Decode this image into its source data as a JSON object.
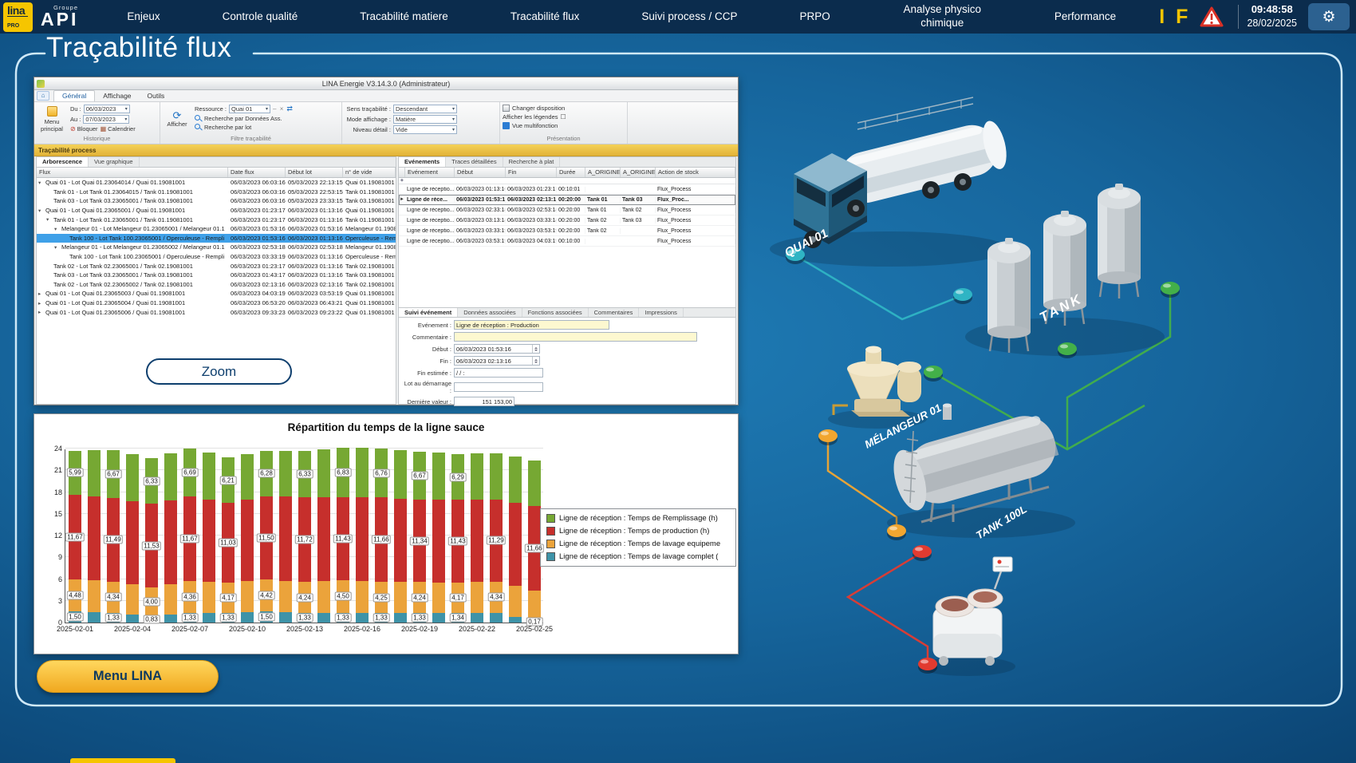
{
  "topbar": {
    "logo_text": "lina",
    "logo_sub": "PRO",
    "brand_top": "Groupe",
    "brand": "API",
    "menu": [
      "Enjeux",
      "Controle qualité",
      "Tracabilité matiere",
      "Tracabilité flux",
      "Suivi process / CCP",
      "PRPO",
      "Analyse physico chimique",
      "Performance"
    ],
    "indicator_i": "I",
    "indicator_f": "F",
    "time": "09:48:58",
    "date": "28/02/2025"
  },
  "page_title": "Traçabilité flux",
  "window": {
    "title": "LINA Energie  V3.14.3.0  (Administrateur)",
    "tabs": [
      "Général",
      "Affichage",
      "Outils"
    ],
    "toolbar": {
      "menu_principal": "Menu principal",
      "du_label": "Du :",
      "du_value": "06/03/2023",
      "au_label": "Au :",
      "au_value": "07/03/2023",
      "bloquer": "Bloquer",
      "calendrier": "Calendrier",
      "group_historique": "Historique",
      "afficher": "Afficher",
      "ressource_label": "Ressource :",
      "ressource_value": "Quai 01",
      "recherche_donnees": "Recherche par Données Ass.",
      "recherche_lot": "Recherche par lot",
      "group_filtre": "Filtre traçabilité",
      "sens_label": "Sens traçabilité :",
      "sens_value": "Descendant",
      "mode_label": "Mode affichage :",
      "mode_value": "Matière",
      "niveau_label": "Niveau détail :",
      "niveau_value": "Vide",
      "changer_disposition": "Changer disposition",
      "afficher_legendes": "Afficher les légendes",
      "vue_multifonction": "Vue multifonction",
      "group_presentation": "Présentation"
    },
    "process_band": "Traçabilité process",
    "left_tabs": [
      "Arborescence",
      "Vue graphique"
    ],
    "tree": {
      "columns": [
        "Flux",
        "Date flux",
        "Début lot",
        "n° de vide"
      ],
      "rows": [
        {
          "level": 0,
          "arrow": "▾",
          "selected": false,
          "flux": "Quai 01 - Lot Quai 01.23064014 / Quai 01.19081001",
          "date": "06/03/2023 06:03:16",
          "debut": "05/03/2023 22:13:15",
          "vide": "Quai 01.19081001"
        },
        {
          "level": 1,
          "arrow": "",
          "selected": false,
          "flux": "Tank 01 - Lot Tank 01.23064015 / Tank 01.19081001",
          "date": "06/03/2023 06:03:16",
          "debut": "05/03/2023 22:53:15",
          "vide": "Tank 01.19081001"
        },
        {
          "level": 1,
          "arrow": "",
          "selected": false,
          "flux": "Tank 03 - Lot Tank 03.23065001 / Tank 03.19081001",
          "date": "06/03/2023 06:03:16",
          "debut": "05/03/2023 23:33:15",
          "vide": "Tank 03.19081001"
        },
        {
          "level": 0,
          "arrow": "▾",
          "selected": false,
          "flux": "Quai 01 - Lot Quai 01.23065001 / Quai 01.19081001",
          "date": "06/03/2023 01:23:17",
          "debut": "06/03/2023 01:13:16",
          "vide": "Quai 01.19081001"
        },
        {
          "level": 1,
          "arrow": "▾",
          "selected": false,
          "flux": "Tank 01 - Lot Tank 01.23065001 / Tank 01.19081001",
          "date": "06/03/2023 01:23:17",
          "debut": "06/03/2023 01:13:16",
          "vide": "Tank 01.19081001"
        },
        {
          "level": 2,
          "arrow": "▾",
          "selected": false,
          "flux": "Melangeur 01 - Lot Melangeur 01.23065001 / Melangeur 01.1",
          "date": "06/03/2023 01:53:16",
          "debut": "06/03/2023 01:53:16",
          "vide": "Melangeur 01.19081001"
        },
        {
          "level": 3,
          "arrow": "",
          "selected": true,
          "flux": "Tank 100 - Lot Tank 100.23065001 / Operculeuse - Rempli",
          "date": "06/03/2023 01:53:16",
          "debut": "06/03/2023 01:13:16",
          "vide": "Operculeuse - Remplis"
        },
        {
          "level": 2,
          "arrow": "▾",
          "selected": false,
          "flux": "Melangeur 01 - Lot Melangeur 01.23065002 / Melangeur 01.1",
          "date": "06/03/2023 02:53:18",
          "debut": "06/03/2023 02:53:18",
          "vide": "Melangeur 01.1908100"
        },
        {
          "level": 3,
          "arrow": "",
          "selected": false,
          "flux": "Tank 100 - Lot Tank 100.23065001 / Operculeuse - Rempli",
          "date": "06/03/2023 03:33:19",
          "debut": "06/03/2023 01:13:16",
          "vide": "Operculeuse - Remplis"
        },
        {
          "level": 1,
          "arrow": "",
          "selected": false,
          "flux": "Tank 02 - Lot Tank 02.23065001 / Tank 02.19081001",
          "date": "06/03/2023 01:23:17",
          "debut": "06/03/2023 01:13:16",
          "vide": "Tank 02.19081001"
        },
        {
          "level": 1,
          "arrow": "",
          "selected": false,
          "flux": "Tank 03 - Lot Tank 03.23065001 / Tank 03.19081001",
          "date": "06/03/2023 01:43:17",
          "debut": "06/03/2023 01:13:16",
          "vide": "Tank 03.19081001"
        },
        {
          "level": 1,
          "arrow": "",
          "selected": false,
          "flux": "Tank 02 - Lot Tank 02.23065002 / Tank 02.19081001",
          "date": "06/03/2023 02:13:16",
          "debut": "06/03/2023 02:13:16",
          "vide": "Tank 02.19081001"
        },
        {
          "level": 0,
          "arrow": "▸",
          "selected": false,
          "flux": "Quai 01 - Lot Quai 01.23065003 / Quai 01.19081001",
          "date": "06/03/2023 04:03:19",
          "debut": "06/03/2023 03:53:19",
          "vide": "Quai 01.19081001"
        },
        {
          "level": 0,
          "arrow": "▸",
          "selected": false,
          "flux": "Quai 01 - Lot Quai 01.23065004 / Quai 01.19081001",
          "date": "06/03/2023 06:53:20",
          "debut": "06/03/2023 06:43:21",
          "vide": "Quai 01.19081001"
        },
        {
          "level": 0,
          "arrow": "▸",
          "selected": false,
          "flux": "Quai 01 - Lot Quai 01.23065006 / Quai 01.19081001",
          "date": "06/03/2023 09:33:23",
          "debut": "06/03/2023 09:23:22",
          "vide": "Quai 01.19081001"
        }
      ]
    },
    "right_tabs": [
      "Evénements",
      "Traces détaillées",
      "Recherche à plat"
    ],
    "events": {
      "columns": [
        "Evénement",
        "Début",
        "Fin",
        "Durée",
        "A_ORIGINE_0",
        "A_ORIGINE_0",
        "Action de stock"
      ],
      "rows": [
        {
          "selected": false,
          "ev": "Ligne de réceptio...",
          "debut": "06/03/2023 01:13:16",
          "fin": "06/03/2023 01:23:17",
          "duree": "00:10:01",
          "o1": "",
          "o2": "",
          "action": "Flux_Process"
        },
        {
          "selected": true,
          "ev": "Ligne de réce...",
          "debut": "06/03/2023 01:53:16",
          "fin": "06/03/2023 02:13:16",
          "duree": "00:20:00",
          "o1": "Tank 01",
          "o2": "Tank 03",
          "action": "Flux_Proc..."
        },
        {
          "selected": false,
          "ev": "Ligne de réceptio...",
          "debut": "06/03/2023 02:33:18",
          "fin": "06/03/2023 02:53:18",
          "duree": "00:20:00",
          "o1": "Tank 01",
          "o2": "Tank 02",
          "action": "Flux_Process"
        },
        {
          "selected": false,
          "ev": "Ligne de réceptio...",
          "debut": "06/03/2023 03:13:18",
          "fin": "06/03/2023 03:33:18",
          "duree": "00:20:00",
          "o1": "Tank 02",
          "o2": "Tank 03",
          "action": "Flux_Process"
        },
        {
          "selected": false,
          "ev": "Ligne de réceptio...",
          "debut": "06/03/2023 03:33:19",
          "fin": "06/03/2023 03:53:19",
          "duree": "00:20:00",
          "o1": "Tank 02",
          "o2": "",
          "action": "Flux_Process"
        },
        {
          "selected": false,
          "ev": "Ligne de réceptio...",
          "debut": "06/03/2023 03:53:19",
          "fin": "06/03/2023 04:03:19",
          "duree": "00:10:00",
          "o1": "",
          "o2": "",
          "action": "Flux_Process"
        }
      ]
    },
    "detail_tabs": [
      "Suivi événement",
      "Données associées",
      "Fonctions associées",
      "Commentaires",
      "Impressions"
    ],
    "detail": {
      "evenement_label": "Evénement :",
      "evenement_value": "Ligne de réception : Production",
      "commentaire_label": "Commentaire :",
      "commentaire_value": "",
      "debut_label": "Début :",
      "debut_value": "06/03/2023 01:53:16",
      "fin_label": "Fin :",
      "fin_value": "06/03/2023 02:13:16",
      "fin_estimee_label": "Fin estimée :",
      "fin_estimee_value": "/  /        :",
      "lot_label": "Lot au démarrage :",
      "lot_value": "",
      "derniere_label": "Dernière valeur :",
      "derniere_value": "151 153,00"
    },
    "zoom_button": "Zoom"
  },
  "chart_data": {
    "type": "bar",
    "stacked": true,
    "title": "Répartition du temps de la ligne sauce",
    "xlabel": "",
    "ylabel": "",
    "ylim": [
      0,
      24
    ],
    "yticks": [
      0,
      3,
      6,
      9,
      12,
      15,
      18,
      21,
      24
    ],
    "grid": true,
    "legend_position": "right",
    "stack_order_bottom_to_top": [
      "lavage complet",
      "lavage equipement",
      "production",
      "Remplissage"
    ],
    "categories": [
      "2025-02-01",
      "2025-02-02",
      "2025-02-03",
      "2025-02-04",
      "2025-02-05",
      "2025-02-06",
      "2025-02-07",
      "2025-02-08",
      "2025-02-09",
      "2025-02-10",
      "2025-02-11",
      "2025-02-12",
      "2025-02-13",
      "2025-02-14",
      "2025-02-15",
      "2025-02-16",
      "2025-02-17",
      "2025-02-18",
      "2025-02-19",
      "2025-02-20",
      "2025-02-21",
      "2025-02-22",
      "2025-02-23",
      "2025-02-24",
      "2025-02-25"
    ],
    "xtick_labels": [
      "2025-02-01",
      "2025-02-04",
      "2025-02-07",
      "2025-02-10",
      "2025-02-13",
      "2025-02-16",
      "2025-02-19",
      "2025-02-22",
      "2025-02-25"
    ],
    "series": [
      {
        "name": "Ligne de réception : Temps de Remplissage (h)",
        "color": "#76A833",
        "values": [
          5.99,
          6.4,
          6.67,
          6.5,
          6.33,
          6.5,
          6.69,
          6.45,
          6.21,
          6.25,
          6.28,
          6.3,
          6.33,
          6.6,
          6.83,
          6.8,
          6.76,
          6.7,
          6.67,
          6.5,
          6.29,
          6.35,
          6.4,
          6.35,
          6.3
        ],
        "labels": [
          "5,99",
          null,
          "6,67",
          null,
          "6,33",
          null,
          "6,69",
          null,
          "6,21",
          null,
          "6,28",
          null,
          "6,33",
          null,
          "6,83",
          null,
          "6,76",
          null,
          "6,67",
          null,
          "6,29",
          null,
          null,
          null,
          null
        ]
      },
      {
        "name": "Ligne de réception : Temps de production (h)",
        "color": "#C62F2C",
        "values": [
          11.67,
          11.58,
          11.49,
          11.51,
          11.53,
          11.6,
          11.67,
          11.35,
          11.03,
          11.27,
          11.5,
          11.61,
          11.72,
          11.58,
          11.43,
          11.55,
          11.66,
          11.5,
          11.34,
          11.39,
          11.43,
          11.36,
          11.29,
          11.48,
          11.66
        ],
        "labels": [
          "11,67",
          null,
          "11,49",
          null,
          "11,53",
          null,
          "11,67",
          null,
          "11,03",
          null,
          "11,50",
          null,
          "11,72",
          null,
          "11,43",
          null,
          "11,66",
          null,
          "11,34",
          null,
          "11,43",
          null,
          "11,29",
          null,
          "11,66"
        ]
      },
      {
        "name": "Ligne de réception : Temps de lavage equipeme",
        "color": "#EBA33B",
        "values": [
          4.48,
          4.41,
          4.34,
          4.17,
          4.0,
          4.18,
          4.36,
          4.27,
          4.17,
          4.3,
          4.42,
          4.33,
          4.24,
          4.37,
          4.5,
          4.38,
          4.25,
          4.25,
          4.24,
          4.21,
          4.17,
          4.26,
          4.34,
          4.3,
          4.25
        ],
        "labels": [
          "4,48",
          null,
          "4,34",
          null,
          "4,00",
          null,
          "4,36",
          null,
          "4,17",
          null,
          "4,42",
          null,
          "4,24",
          null,
          "4,50",
          null,
          "4,25",
          null,
          "4,24",
          null,
          "4,17",
          null,
          "4,34",
          null,
          null
        ]
      },
      {
        "name": "Ligne de réception : Temps de lavage complet (",
        "color": "#3E93A8",
        "values": [
          1.5,
          1.42,
          1.33,
          1.08,
          0.83,
          1.08,
          1.33,
          1.33,
          1.33,
          1.42,
          1.5,
          1.42,
          1.33,
          1.33,
          1.33,
          1.33,
          1.33,
          1.33,
          1.33,
          1.34,
          1.34,
          1.34,
          1.33,
          0.75,
          0.17
        ],
        "labels": [
          "1,50",
          null,
          "1,33",
          null,
          "0,83",
          null,
          "1,33",
          null,
          "1,33",
          null,
          "1,50",
          null,
          "1,33",
          null,
          "1,33",
          null,
          "1,33",
          null,
          "1,33",
          null,
          "1,34",
          null,
          null,
          null,
          "0,17"
        ]
      }
    ]
  },
  "diagram": {
    "labels": {
      "quai": "QUAI 01",
      "tank": "TANK",
      "melangeur": "MÉLANGEUR 01",
      "tank100": "TANK 100L"
    },
    "status_colors": {
      "teal": "#2FB4C4",
      "green": "#43B049",
      "yellow": "#F2A630",
      "red": "#E23B30"
    }
  },
  "menu_lina": "Menu LINA"
}
